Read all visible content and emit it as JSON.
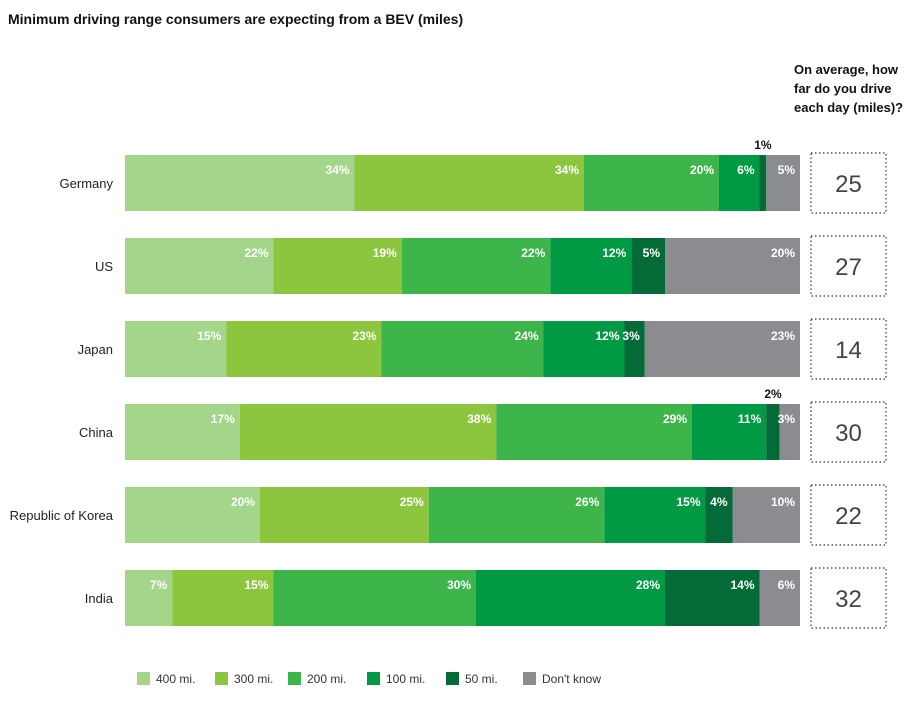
{
  "chart_data": {
    "type": "bar",
    "orientation": "horizontal",
    "stacked": true,
    "title": "Minimum driving range consumers are expecting from a BEV (miles)",
    "side_question": [
      "On average, how",
      "far do you drive",
      "each day (miles)?"
    ],
    "categories": [
      "Germany",
      "US",
      "Japan",
      "China",
      "Republic of Korea",
      "India"
    ],
    "series": [
      {
        "name": "400 mi.",
        "color": "#a3d68a",
        "values": [
          34,
          22,
          15,
          17,
          20,
          7
        ]
      },
      {
        "name": "300 mi.",
        "color": "#8cc63f",
        "values": [
          34,
          19,
          23,
          38,
          25,
          15
        ]
      },
      {
        "name": "200 mi.",
        "color": "#3db54a",
        "values": [
          20,
          22,
          24,
          29,
          26,
          30
        ]
      },
      {
        "name": "100 mi.",
        "color": "#009a44",
        "values": [
          6,
          12,
          12,
          11,
          15,
          28
        ]
      },
      {
        "name": "50 mi.",
        "color": "#046a38",
        "values": [
          1,
          5,
          3,
          2,
          4,
          14
        ]
      },
      {
        "name": "Don't know",
        "color": "#8a8c8f",
        "values": [
          5,
          20,
          23,
          3,
          10,
          6
        ]
      }
    ],
    "outside_labels": [
      {
        "category": "Germany",
        "series": "50 mi.",
        "label": "1%"
      },
      {
        "category": "China",
        "series": "50 mi.",
        "label": "2%"
      }
    ],
    "average_daily_miles": [
      25,
      27,
      14,
      30,
      22,
      32
    ],
    "legend_position": "bottom",
    "grid": false
  }
}
